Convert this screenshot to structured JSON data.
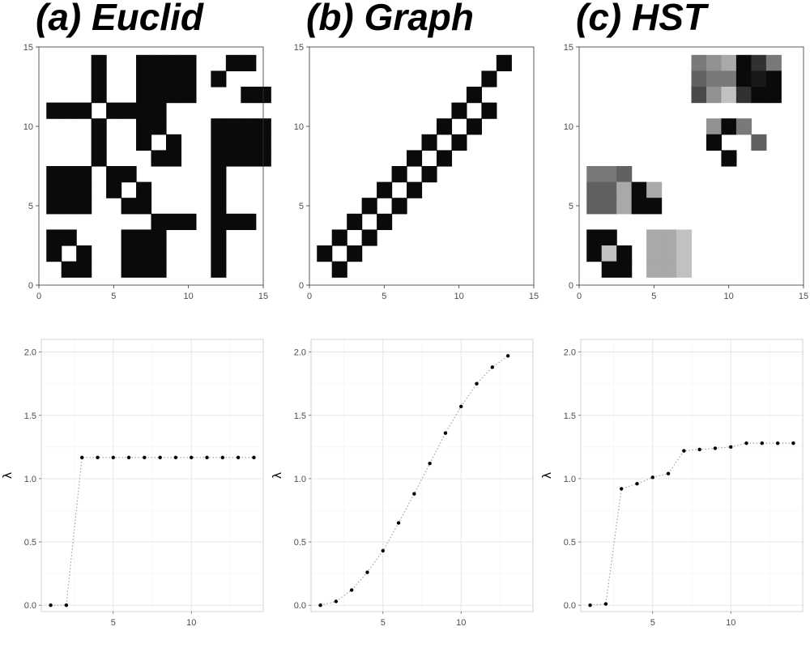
{
  "chart_data": [
    {
      "type": "heatmap",
      "title": "(a) Euclid",
      "xlim": [
        0,
        15
      ],
      "ylim": [
        0,
        15
      ],
      "x_ticks": [
        0,
        5,
        10,
        15
      ],
      "y_ticks": [
        0,
        5,
        10,
        15
      ],
      "grid": false,
      "cell_rows_top_to_bottom": [
        "000100111100110",
        "000100111101000",
        "000100111100011",
        "111011110000000",
        "000100110001111",
        "000100101001111",
        "000100011001111",
        "111011000001000",
        "111010100001000",
        "111001100001000",
        "000000011101110",
        "110001110001000",
        "101001110001000",
        "011001110001000"
      ]
    },
    {
      "type": "heatmap",
      "title": "(b) Graph",
      "xlim": [
        0,
        15
      ],
      "ylim": [
        0,
        15
      ],
      "x_ticks": [
        0,
        5,
        10,
        15
      ],
      "y_ticks": [
        0,
        5,
        10,
        15
      ],
      "grid": false,
      "cell_rows_top_to_bottom": [
        "0000000000001",
        "0000000000010",
        "0000000000100",
        "0000000001010",
        "0000000010100",
        "0000000101000",
        "0000001010000",
        "0000010100000",
        "0000101000000",
        "0001010000000",
        "0010100000000",
        "0101000000000",
        "1010000000000",
        "0100000000000"
      ]
    },
    {
      "type": "heatmap",
      "title": "(c) HST",
      "xlim": [
        0,
        15
      ],
      "ylim": [
        0,
        15
      ],
      "x_ticks": [
        0,
        5,
        10,
        15
      ],
      "y_ticks": [
        0,
        5,
        10,
        15
      ],
      "grid": false,
      "cell_rows_top_to_bottom": [
        "0000000678136",
        "0000000566121",
        "0000000479311",
        "0000000000000",
        "0000000071600",
        "0000000010050",
        "0000000001000",
        "6650000000000",
        "5581800000000",
        "5581100000000",
        "0000000000000",
        "1100889000000",
        "1910889000000",
        "0110889000000"
      ]
    },
    {
      "type": "scatter",
      "title": "",
      "xlabel": "",
      "ylabel": "λ",
      "xlim": [
        0.4,
        14.6
      ],
      "ylim": [
        -0.05,
        2.1
      ],
      "x_ticks": [
        5,
        10
      ],
      "y_ticks": [
        0.0,
        0.5,
        1.0,
        1.5,
        2.0
      ],
      "y_tick_labels": [
        "0.0",
        "0.5",
        "1.0",
        "1.5",
        "2.0"
      ],
      "grid": true,
      "connector": "dotted",
      "x": [
        1,
        2,
        3,
        4,
        5,
        6,
        7,
        8,
        9,
        10,
        11,
        12,
        13,
        14
      ],
      "y": [
        0.0,
        0.0,
        1.167,
        1.167,
        1.167,
        1.167,
        1.167,
        1.167,
        1.167,
        1.167,
        1.167,
        1.167,
        1.167,
        1.167
      ]
    },
    {
      "type": "scatter",
      "title": "",
      "xlabel": "",
      "ylabel": "λ",
      "xlim": [
        0.4,
        14.6
      ],
      "ylim": [
        -0.05,
        2.1
      ],
      "x_ticks": [
        5,
        10
      ],
      "y_ticks": [
        0.0,
        0.5,
        1.0,
        1.5,
        2.0
      ],
      "y_tick_labels": [
        "0.0",
        "0.5",
        "1.0",
        "1.5",
        "2.0"
      ],
      "grid": true,
      "connector": "dotted",
      "x": [
        1,
        2,
        3,
        4,
        5,
        6,
        7,
        8,
        9,
        10,
        11,
        12,
        13
      ],
      "y": [
        0.0,
        0.03,
        0.12,
        0.26,
        0.43,
        0.65,
        0.88,
        1.12,
        1.36,
        1.57,
        1.75,
        1.88,
        1.97
      ]
    },
    {
      "type": "scatter",
      "title": "",
      "xlabel": "",
      "ylabel": "λ",
      "xlim": [
        0.4,
        14.6
      ],
      "ylim": [
        -0.05,
        2.1
      ],
      "x_ticks": [
        5,
        10
      ],
      "y_ticks": [
        0.0,
        0.5,
        1.0,
        1.5,
        2.0
      ],
      "y_tick_labels": [
        "0.0",
        "0.5",
        "1.0",
        "1.5",
        "2.0"
      ],
      "grid": true,
      "connector": "dotted",
      "x": [
        1,
        2,
        3,
        4,
        5,
        6,
        7,
        8,
        9,
        10,
        11,
        12,
        13,
        14
      ],
      "y": [
        0.0,
        0.01,
        0.92,
        0.96,
        1.01,
        1.04,
        1.22,
        1.23,
        1.24,
        1.25,
        1.28,
        1.28,
        1.28,
        1.28
      ]
    }
  ]
}
